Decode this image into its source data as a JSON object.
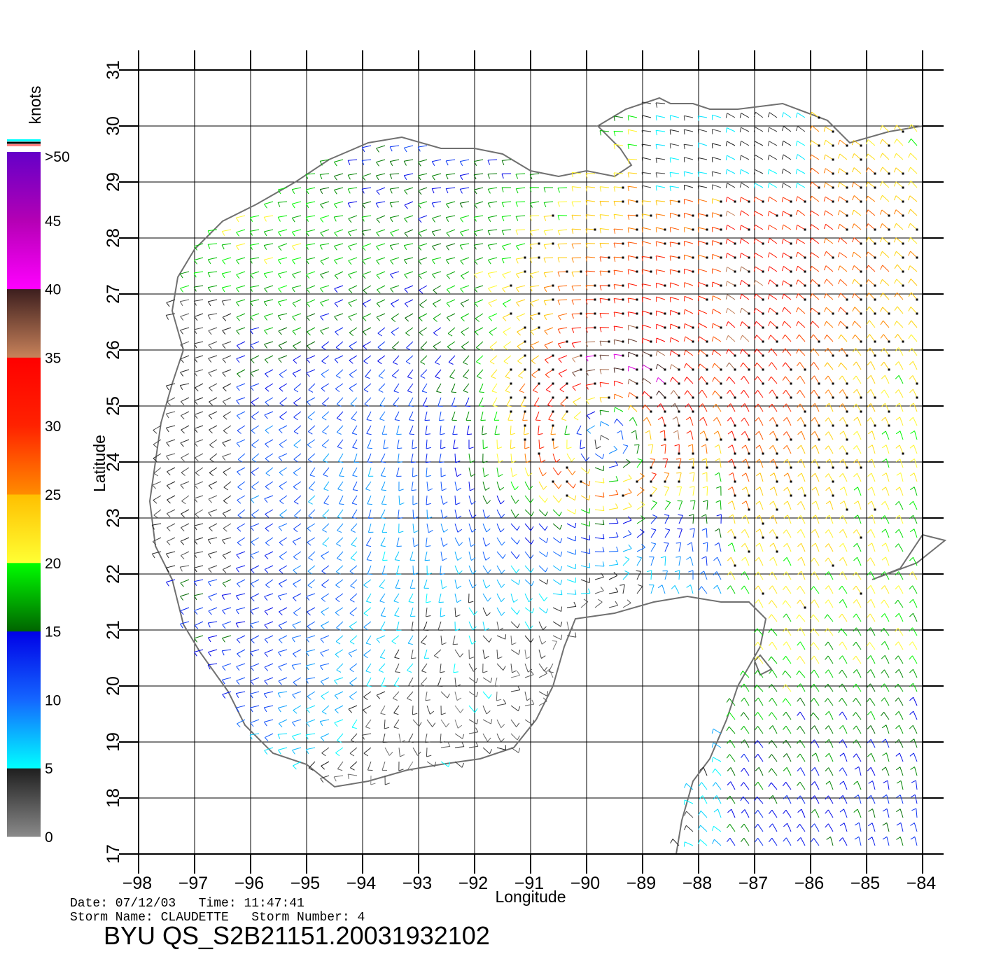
{
  "chart_data": {
    "type": "wind-vector-map",
    "xlabel": "Longitude",
    "ylabel": "Latitude",
    "xlim": [
      -98,
      -84
    ],
    "ylim": [
      17,
      31
    ],
    "x_ticks": [
      "-98",
      "-97",
      "-96",
      "-95",
      "-94",
      "-93",
      "-92",
      "-91",
      "-90",
      "-89",
      "-88",
      "-87",
      "-86",
      "-85",
      "-84"
    ],
    "y_ticks": [
      "17",
      "18",
      "19",
      "20",
      "21",
      "22",
      "23",
      "24",
      "25",
      "26",
      "27",
      "28",
      "29",
      "30",
      "31"
    ],
    "grid": true,
    "storm_center": {
      "lon": -89.6,
      "lat": 24.6
    },
    "colorbar": {
      "unit": "knots",
      "labels": [
        "0",
        "5",
        "10",
        "15",
        "20",
        "25",
        "30",
        "35",
        "40",
        "45",
        ">50"
      ],
      "segments": [
        {
          "from": 0,
          "to": 5,
          "colors": [
            "#8a8a8a",
            "#1e1e1e"
          ]
        },
        {
          "from": 5,
          "to": 10,
          "colors": [
            "#00ffff",
            "#1466ff"
          ]
        },
        {
          "from": 10,
          "to": 15,
          "colors": [
            "#1466ff",
            "#0000e6"
          ]
        },
        {
          "from": 15,
          "to": 20,
          "colors": [
            "#006400",
            "#00ff00"
          ]
        },
        {
          "from": 20,
          "to": 25,
          "colors": [
            "#ffff33",
            "#ffbf00"
          ]
        },
        {
          "from": 25,
          "to": 30,
          "colors": [
            "#ff8c00",
            "#ff2200"
          ]
        },
        {
          "from": 30,
          "to": 35,
          "colors": [
            "#ff2200",
            "#ff0000"
          ]
        },
        {
          "from": 35,
          "to": 40,
          "colors": [
            "#c8825a",
            "#3c1e1e"
          ]
        },
        {
          "from": 40,
          "to": 45,
          "colors": [
            "#ff00ff",
            "#b400b4"
          ]
        },
        {
          "from": 45,
          "to": 50,
          "colors": [
            "#b400b4",
            "#6400c8"
          ]
        }
      ]
    }
  },
  "footer": {
    "date_line": "Date: 07/12/03   Time: 11:47:41",
    "storm_line": "Storm Name: CLAUDETTE   Storm Number: 4",
    "product_id": "BYU QS_S2B21151.20031932102"
  },
  "colors": {
    "coastline": "#707070",
    "grid": "#000000"
  }
}
